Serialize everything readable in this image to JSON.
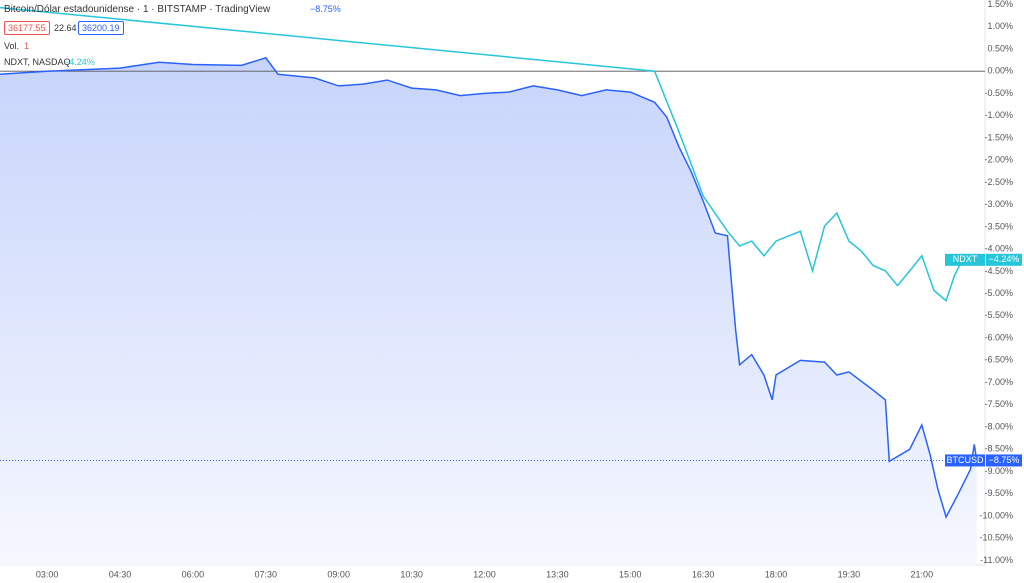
{
  "header": {
    "title": "Bitcoin/Dólar estadounidense · 1 · BITSTAMP · TradingView",
    "change": "−8.75%",
    "bid": "36177.55",
    "spread": "22.64",
    "ask": "36200.19",
    "vol_label": "Vol.",
    "vol_value": "1",
    "compare": "NDXT, NASDAQ",
    "compare_change": "−4.24%"
  },
  "chart_data": {
    "type": "line",
    "grid": false,
    "xlim": [
      2.03,
      22.3
    ],
    "xticks": [
      {
        "value": 3,
        "label": "03:00"
      },
      {
        "value": 4.5,
        "label": "04:30"
      },
      {
        "value": 6,
        "label": "06:00"
      },
      {
        "value": 7.5,
        "label": "07:30"
      },
      {
        "value": 9,
        "label": "09:00"
      },
      {
        "value": 10.5,
        "label": "10:30"
      },
      {
        "value": 12,
        "label": "12:00"
      },
      {
        "value": 13.5,
        "label": "13:30"
      },
      {
        "value": 15,
        "label": "15:00"
      },
      {
        "value": 16.5,
        "label": "16:30"
      },
      {
        "value": 18,
        "label": "18:00"
      },
      {
        "value": 19.5,
        "label": "19:30"
      },
      {
        "value": 21,
        "label": "21:00"
      }
    ],
    "ylim": [
      -11.1,
      1.6
    ],
    "yticks": [
      {
        "value": 1.5,
        "label": "1.50%"
      },
      {
        "value": 1,
        "label": "1.00%"
      },
      {
        "value": 0.5,
        "label": "0.50%"
      },
      {
        "value": 0,
        "label": "0.00%"
      },
      {
        "value": -0.5,
        "label": "-0.50%"
      },
      {
        "value": -1,
        "label": "-1.00%"
      },
      {
        "value": -1.5,
        "label": "-1.50%"
      },
      {
        "value": -2,
        "label": "-2.00%"
      },
      {
        "value": -2.5,
        "label": "-2.50%"
      },
      {
        "value": -3,
        "label": "-3.00%"
      },
      {
        "value": -3.5,
        "label": "-3.50%"
      },
      {
        "value": -4,
        "label": "-4.00%"
      },
      {
        "value": -4.5,
        "label": "-4.50%"
      },
      {
        "value": -5,
        "label": "-5.00%"
      },
      {
        "value": -5.5,
        "label": "-5.50%"
      },
      {
        "value": -6,
        "label": "-6.00%"
      },
      {
        "value": -6.5,
        "label": "-6.50%"
      },
      {
        "value": -7,
        "label": "-7.00%"
      },
      {
        "value": -7.5,
        "label": "-7.50%"
      },
      {
        "value": -8,
        "label": "-8.00%"
      },
      {
        "value": -8.5,
        "label": "-8.50%"
      },
      {
        "value": -9,
        "label": "-9.00%"
      },
      {
        "value": -9.5,
        "label": "-9.50%"
      },
      {
        "value": -10,
        "label": "-10.00%"
      },
      {
        "value": -10.5,
        "label": "-10.50%"
      },
      {
        "value": -11,
        "label": "-11.00%"
      }
    ],
    "series": [
      {
        "name": "BTCUSD",
        "color": "#2962ff",
        "last_label": "−8.75%",
        "x": [
          2.03,
          3,
          4.5,
          5.3,
          6,
          7,
          7.5,
          7.75,
          8.5,
          9,
          9.5,
          10,
          10.5,
          11,
          11.5,
          12,
          12.5,
          13,
          13.5,
          14,
          14.5,
          15,
          15.5,
          15.75,
          16,
          16.25,
          16.5,
          16.75,
          17,
          17.08,
          17.17,
          17.25,
          17.5,
          17.75,
          17.92,
          18,
          18.5,
          19,
          19.25,
          19.5,
          20,
          20.25,
          20.33,
          20.75,
          21,
          21.17,
          21.33,
          21.5,
          21.75,
          22,
          22.08,
          22.13
        ],
        "values": [
          -0.07,
          0,
          0.07,
          0.2,
          0.15,
          0.13,
          0.3,
          -0.07,
          -0.15,
          -0.33,
          -0.29,
          -0.2,
          -0.38,
          -0.42,
          -0.55,
          -0.5,
          -0.47,
          -0.33,
          -0.42,
          -0.55,
          -0.42,
          -0.47,
          -0.7,
          -1.03,
          -1.7,
          -2.25,
          -2.92,
          -3.64,
          -3.7,
          -4.71,
          -5.83,
          -6.6,
          -6.37,
          -6.83,
          -7.39,
          -6.83,
          -6.5,
          -6.54,
          -6.83,
          -6.76,
          -7.17,
          -7.39,
          -8.77,
          -8.5,
          -7.95,
          -8.62,
          -9.4,
          -10.02,
          -9.5,
          -8.95,
          -8.39,
          -8.75
        ]
      },
      {
        "name": "NDXT",
        "color": "#26c6da",
        "last_label": "−4.24%",
        "x": [
          2.03,
          15.5,
          16,
          16.5,
          17,
          17.25,
          17.5,
          17.75,
          18,
          18.5,
          18.75,
          19,
          19.25,
          19.5,
          19.75,
          20,
          20.25,
          20.5,
          20.75,
          21,
          21.25,
          21.5,
          21.67,
          21.83
        ],
        "values": [
          1.43,
          0,
          -1.36,
          -2.81,
          -3.6,
          -3.93,
          -3.82,
          -4.15,
          -3.82,
          -3.6,
          -4.49,
          -3.48,
          -3.19,
          -3.82,
          -4.04,
          -4.37,
          -4.49,
          -4.82,
          -4.49,
          -4.15,
          -4.93,
          -5.16,
          -4.6,
          -4.24
        ]
      }
    ]
  }
}
